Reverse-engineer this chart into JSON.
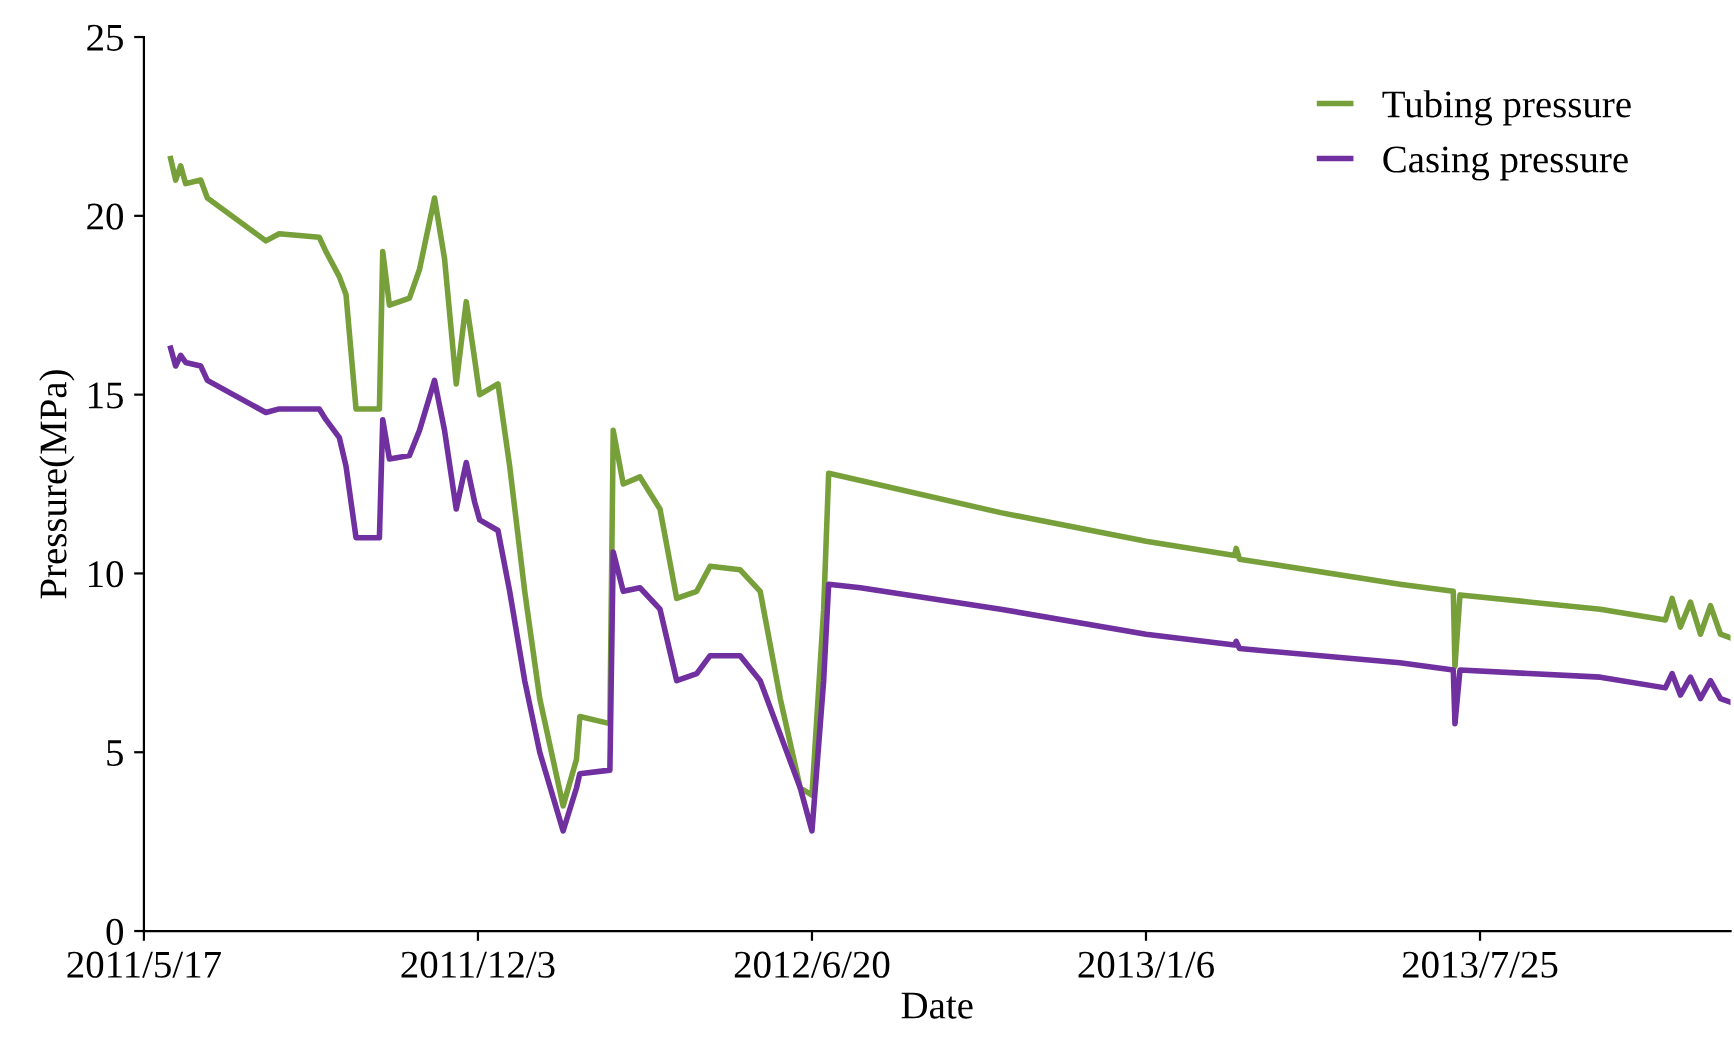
{
  "chart_data": {
    "type": "line",
    "xlabel": "Date",
    "ylabel": "Pressure(MPa)",
    "x": [
      "2011-06-02",
      "2011-06-05",
      "2011-06-08",
      "2011-06-11",
      "2011-06-20",
      "2011-06-24",
      "2011-07-29",
      "2011-08-06",
      "2011-08-30",
      "2011-09-03",
      "2011-09-11",
      "2011-09-15",
      "2011-09-21",
      "2011-10-05",
      "2011-10-07",
      "2011-10-11",
      "2011-10-23",
      "2011-10-29",
      "2011-11-07",
      "2011-11-13",
      "2011-11-20",
      "2011-11-26",
      "2011-12-01",
      "2011-12-04",
      "2011-12-15",
      "2011-12-22",
      "2011-12-31",
      "2012-01-09",
      "2012-01-23",
      "2012-01-31",
      "2012-02-02",
      "2012-02-20",
      "2012-02-22",
      "2012-02-28",
      "2012-03-09",
      "2012-03-21",
      "2012-03-31",
      "2012-04-12",
      "2012-04-20",
      "2012-05-08",
      "2012-05-20",
      "2012-06-01",
      "2012-06-13",
      "2012-06-20",
      "2012-06-27",
      "2012-06-30",
      "2012-07-19",
      "2012-10-11",
      "2013-01-06",
      "2013-02-28",
      "2013-03-01",
      "2013-03-03",
      "2013-06-07",
      "2013-07-09",
      "2013-07-10",
      "2013-07-13",
      "2013-10-05",
      "2013-11-13",
      "2013-11-17",
      "2013-11-22",
      "2013-11-28",
      "2013-12-04",
      "2013-12-10",
      "2013-12-16",
      "2013-12-22"
    ],
    "series": [
      {
        "name": "Tubing pressure",
        "color": "#77a03a",
        "values": [
          21.6,
          21.0,
          21.4,
          20.9,
          21.0,
          20.5,
          19.3,
          19.5,
          19.4,
          19.0,
          18.3,
          17.8,
          14.6,
          14.6,
          19.0,
          17.5,
          17.7,
          18.5,
          20.5,
          18.8,
          15.3,
          17.6,
          16.0,
          15.0,
          15.3,
          13.0,
          9.5,
          6.5,
          3.5,
          4.8,
          6.0,
          5.8,
          14.0,
          12.5,
          12.7,
          11.8,
          9.3,
          9.5,
          10.2,
          10.1,
          9.5,
          6.5,
          4.0,
          3.8,
          9.0,
          12.8,
          12.6,
          11.7,
          10.9,
          10.5,
          10.7,
          10.4,
          9.7,
          9.5,
          7.4,
          9.4,
          9.0,
          8.7,
          9.3,
          8.5,
          9.2,
          8.3,
          9.1,
          8.3,
          8.2
        ]
      },
      {
        "name": "Casing pressure",
        "color": "#7030a0",
        "values": [
          16.3,
          15.8,
          16.1,
          15.9,
          15.8,
          15.4,
          14.5,
          14.6,
          14.6,
          14.3,
          13.8,
          13.0,
          11.0,
          11.0,
          14.3,
          13.2,
          13.3,
          14.0,
          15.4,
          14.0,
          11.8,
          13.1,
          12.0,
          11.5,
          11.2,
          9.5,
          7.0,
          5.0,
          2.8,
          4.0,
          4.4,
          4.5,
          10.6,
          9.5,
          9.6,
          9.0,
          7.0,
          7.2,
          7.7,
          7.7,
          7.0,
          5.5,
          4.0,
          2.8,
          7.0,
          9.7,
          9.6,
          9.0,
          8.3,
          8.0,
          8.1,
          7.9,
          7.5,
          7.3,
          5.8,
          7.3,
          7.1,
          6.8,
          7.2,
          6.6,
          7.1,
          6.5,
          7.0,
          6.5,
          6.4
        ]
      }
    ],
    "xlim": [
      "2011-05-17",
      "2013-12-22"
    ],
    "xticks": [
      {
        "value": "2011-05-17",
        "label": "2011/5/17"
      },
      {
        "value": "2011-12-03",
        "label": "2011/12/3"
      },
      {
        "value": "2012-06-20",
        "label": "2012/6/20"
      },
      {
        "value": "2013-01-06",
        "label": "2013/1/6"
      },
      {
        "value": "2013-07-25",
        "label": "2013/7/25"
      }
    ],
    "ylim": [
      0,
      25
    ],
    "yticks": [
      0,
      5,
      10,
      15,
      20,
      25
    ],
    "grid": false,
    "legend": "top right",
    "marker": "none",
    "line_style": "solid"
  }
}
